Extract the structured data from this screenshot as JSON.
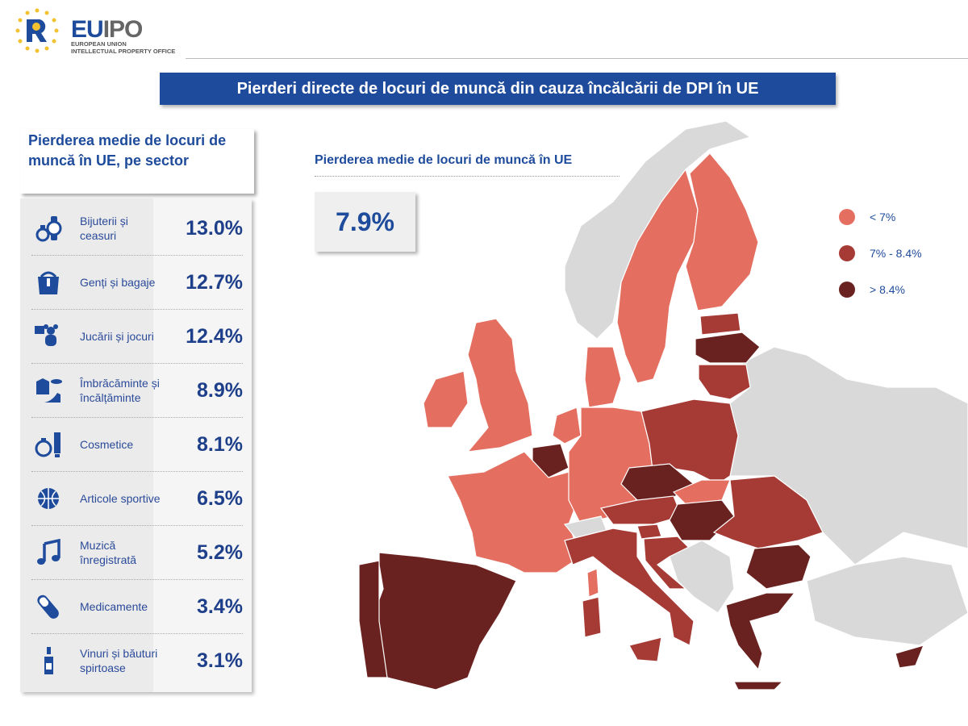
{
  "logo": {
    "word_eu": "EU",
    "word_ipo": "IPO",
    "subtitle_line1": "EUROPEAN UNION",
    "subtitle_line2": "INTELLECTUAL PROPERTY OFFICE"
  },
  "title": "Pierderi directe de locuri de muncă din cauza încălcării de DPI în UE",
  "sector_panel": {
    "heading": "Pierderea medie de locuri de muncă în UE, pe sector",
    "rows": [
      {
        "icon": "jewelry-watch-icon",
        "label": "Bijuterii și ceasuri",
        "value": "13.0%"
      },
      {
        "icon": "handbag-icon",
        "label": "Genți și bagaje",
        "value": "12.7%"
      },
      {
        "icon": "toys-icon",
        "label": "Jucării și jocuri",
        "value": "12.4%"
      },
      {
        "icon": "clothing-shoes-icon",
        "label": "Îmbrăcăminte și încălțăminte",
        "value": "8.9%"
      },
      {
        "icon": "cosmetics-icon",
        "label": "Cosmetice",
        "value": "8.1%"
      },
      {
        "icon": "basketball-icon",
        "label": "Articole sportive",
        "value": "6.5%"
      },
      {
        "icon": "music-note-icon",
        "label": "Muzică înregistrată",
        "value": "5.2%"
      },
      {
        "icon": "pill-icon",
        "label": "Medicamente",
        "value": "3.4%"
      },
      {
        "icon": "wine-bottle-icon",
        "label": "Vinuri și băuturi spirtoase",
        "value": "3.1%"
      }
    ]
  },
  "eu_average": {
    "label": "Pierderea medie de locuri de muncă în UE",
    "value": "7.9%"
  },
  "legend": [
    {
      "key": "low",
      "label": "< 7%",
      "color": "#e46f60"
    },
    {
      "key": "mid",
      "label": "7% - 8.4%",
      "color": "#a63b36"
    },
    {
      "key": "high",
      "label": "> 8.4%",
      "color": "#6a2220"
    }
  ],
  "non_eu_color": "#d9d9d9",
  "countries": {
    "norway": "none",
    "sweden": "low",
    "finland": "low",
    "estonia": "mid",
    "latvia": "high",
    "lithuania": "mid",
    "denmark": "low",
    "uk": "low",
    "ireland": "low",
    "netherlands": "low",
    "belgium": "high",
    "france": "low",
    "germany": "low",
    "poland": "mid",
    "czechia": "high",
    "slovakia": "low",
    "austria": "mid",
    "hungary": "high",
    "switzerland": "none",
    "italy": "mid",
    "sicily": "mid",
    "sardinia": "mid",
    "corsica": "low",
    "slovenia": "mid",
    "croatia": "mid",
    "balkans": "none",
    "romania": "mid",
    "bulgaria": "high",
    "greece": "high",
    "crete": "high",
    "cyprus": "high",
    "spain": "high",
    "portugal": "high",
    "eastern-europe": "none",
    "turkey": "none"
  }
}
